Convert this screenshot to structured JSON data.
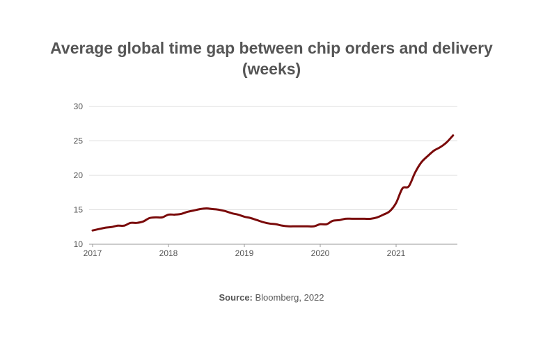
{
  "chart_data": {
    "type": "line",
    "title_line1": "Average global time gap between chip orders and delivery",
    "title_line2": "(weeks)",
    "xlabel": "",
    "ylabel": "",
    "ylim": [
      10,
      30
    ],
    "yticks": [
      "10",
      "15",
      "20",
      "25",
      "30"
    ],
    "xticks": [
      "2017",
      "2018",
      "2019",
      "2020",
      "2021"
    ],
    "grid": "horizontal",
    "line_color": "#7a0a0a",
    "start": "2017-01",
    "frequency": "monthly",
    "values": [
      12.0,
      12.2,
      12.4,
      12.5,
      12.7,
      12.7,
      13.1,
      13.1,
      13.3,
      13.8,
      13.9,
      13.9,
      14.3,
      14.3,
      14.4,
      14.7,
      14.9,
      15.1,
      15.2,
      15.1,
      15.0,
      14.8,
      14.5,
      14.3,
      14.0,
      13.8,
      13.5,
      13.2,
      13.0,
      12.9,
      12.7,
      12.6,
      12.6,
      12.6,
      12.6,
      12.6,
      12.9,
      12.9,
      13.4,
      13.5,
      13.7,
      13.7,
      13.7,
      13.7,
      13.7,
      13.9,
      14.3,
      14.8,
      16.0,
      18.1,
      18.4,
      20.4,
      21.9,
      22.8,
      23.6,
      24.1,
      24.8,
      25.8
    ]
  },
  "source": {
    "label": "Source:",
    "text": " Bloomberg, 2022"
  }
}
